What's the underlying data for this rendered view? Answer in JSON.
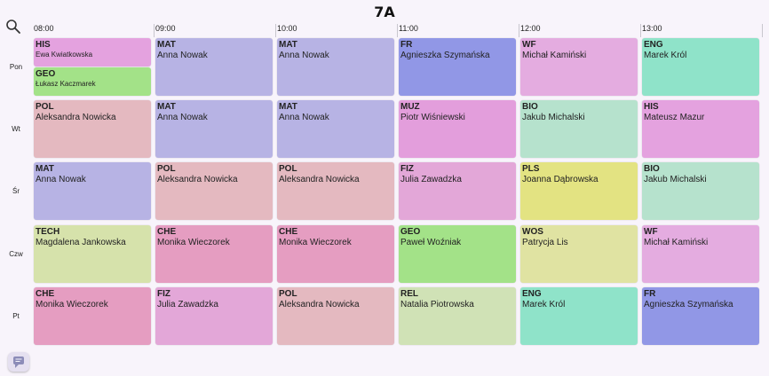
{
  "title": "7A",
  "colors": {
    "HIS": "#e4a2df",
    "GEO": "#a3e288",
    "MAT": "#b7b3e4",
    "POL": "#e4b9c0",
    "FR": "#9197e6",
    "WF": "#e4ace0",
    "ENG": "#8fe3c9",
    "MUZ": "#e39edc",
    "BIO": "#b6e2cd",
    "FIZ": "#e3a7d8",
    "PLS": "#e3e382",
    "TECH": "#d6e2ab",
    "CHE": "#e59dc1",
    "WOS": "#e0e3a2",
    "REL": "#d0e2b6"
  },
  "hours": [
    "08:00",
    "09:00",
    "10:00",
    "11:00",
    "12:00",
    "13:00"
  ],
  "days": [
    "Pon",
    "Wt",
    "Śr",
    "Czw",
    "Pt"
  ],
  "schedule": [
    [
      [
        {
          "subject": "HIS",
          "teacher": "Ewa Kwiatkowska"
        },
        {
          "subject": "GEO",
          "teacher": "Łukasz Kaczmarek"
        }
      ],
      [
        {
          "subject": "MAT",
          "teacher": "Anna Nowak"
        }
      ],
      [
        {
          "subject": "MAT",
          "teacher": "Anna Nowak"
        }
      ],
      [
        {
          "subject": "FR",
          "teacher": "Agnieszka Szymańska"
        }
      ],
      [
        {
          "subject": "WF",
          "teacher": "Michał Kamiński"
        }
      ],
      [
        {
          "subject": "ENG",
          "teacher": "Marek Król"
        }
      ]
    ],
    [
      [
        {
          "subject": "POL",
          "teacher": "Aleksandra Nowicka"
        }
      ],
      [
        {
          "subject": "MAT",
          "teacher": "Anna Nowak"
        }
      ],
      [
        {
          "subject": "MAT",
          "teacher": "Anna Nowak"
        }
      ],
      [
        {
          "subject": "MUZ",
          "teacher": "Piotr Wiśniewski"
        }
      ],
      [
        {
          "subject": "BIO",
          "teacher": "Jakub Michalski"
        }
      ],
      [
        {
          "subject": "HIS",
          "teacher": "Mateusz Mazur"
        }
      ]
    ],
    [
      [
        {
          "subject": "MAT",
          "teacher": "Anna Nowak"
        }
      ],
      [
        {
          "subject": "POL",
          "teacher": "Aleksandra Nowicka"
        }
      ],
      [
        {
          "subject": "POL",
          "teacher": "Aleksandra Nowicka"
        }
      ],
      [
        {
          "subject": "FIZ",
          "teacher": "Julia Zawadzka"
        }
      ],
      [
        {
          "subject": "PLS",
          "teacher": "Joanna Dąbrowska"
        }
      ],
      [
        {
          "subject": "BIO",
          "teacher": "Jakub Michalski"
        }
      ]
    ],
    [
      [
        {
          "subject": "TECH",
          "teacher": "Magdalena Jankowska"
        }
      ],
      [
        {
          "subject": "CHE",
          "teacher": "Monika Wieczorek"
        }
      ],
      [
        {
          "subject": "CHE",
          "teacher": "Monika Wieczorek"
        }
      ],
      [
        {
          "subject": "GEO",
          "teacher": "Paweł Woźniak"
        }
      ],
      [
        {
          "subject": "WOS",
          "teacher": "Patrycja Lis"
        }
      ],
      [
        {
          "subject": "WF",
          "teacher": "Michał Kamiński"
        }
      ]
    ],
    [
      [
        {
          "subject": "CHE",
          "teacher": "Monika Wieczorek"
        }
      ],
      [
        {
          "subject": "FIZ",
          "teacher": "Julia Zawadzka"
        }
      ],
      [
        {
          "subject": "POL",
          "teacher": "Aleksandra Nowicka"
        }
      ],
      [
        {
          "subject": "REL",
          "teacher": "Natalia Piotrowska"
        }
      ],
      [
        {
          "subject": "ENG",
          "teacher": "Marek Król"
        }
      ],
      [
        {
          "subject": "FR",
          "teacher": "Agnieszka Szymańska"
        }
      ]
    ]
  ],
  "icons": {
    "search": "search-icon",
    "chat": "chat-icon"
  }
}
